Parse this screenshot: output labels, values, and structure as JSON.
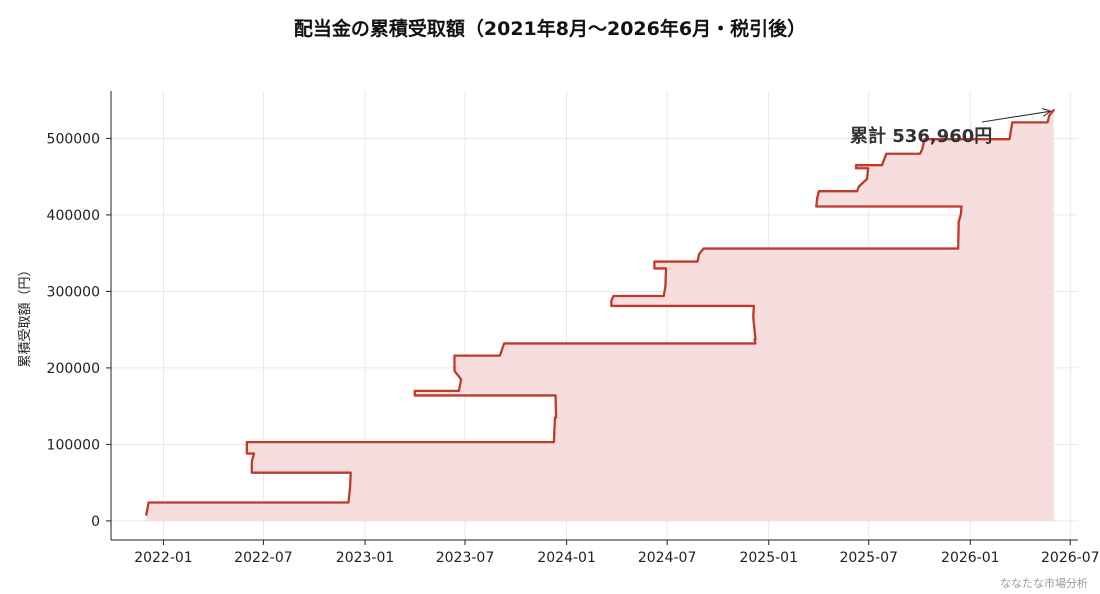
{
  "chart_data": {
    "type": "area",
    "title": "配当金の累積受取額（2021年8月〜2026年6月・税引後）",
    "xlabel": "",
    "ylabel": "累積受取額（円）",
    "ylim": [
      -25000,
      562000
    ],
    "xlim": [
      "2021-09-28",
      "2026-07-15"
    ],
    "yticks": [
      0,
      100000,
      200000,
      300000,
      400000,
      500000
    ],
    "ytick_labels": [
      "0",
      "100000",
      "200000",
      "300000",
      "400000",
      "500000"
    ],
    "xticks": [
      "2022-01-01",
      "2022-07-01",
      "2023-01-01",
      "2023-07-01",
      "2024-01-01",
      "2024-07-01",
      "2025-01-01",
      "2025-07-01",
      "2026-01-01",
      "2026-07-01"
    ],
    "xtick_labels": [
      "2022-01",
      "2022-07",
      "2023-01",
      "2023-07",
      "2024-01",
      "2024-07",
      "2025-01",
      "2025-07",
      "2026-01",
      "2026-07"
    ],
    "grid": true,
    "line_color": "#c0392b",
    "fill_color": "#f5dedd",
    "annotation": {
      "text": "累計 536,960円",
      "x": "2026-06-01",
      "y": 536960
    },
    "series": [
      {
        "values": [
          [
            "2021-12-01",
            8000
          ],
          [
            "2021-12-05",
            24000
          ],
          [
            "2022-12-02",
            24000
          ],
          [
            "2022-12-05",
            45000
          ],
          [
            "2022-12-06",
            63000
          ],
          [
            "2022-06-10",
            63000
          ],
          [
            "2022-06-10",
            78000
          ],
          [
            "2022-06-14",
            88000
          ],
          [
            "2022-06-01",
            88000
          ],
          [
            "2022-06-01",
            103000
          ],
          [
            "2023-12-09",
            103000
          ],
          [
            "2023-12-10",
            120000
          ],
          [
            "2023-12-11",
            135000
          ],
          [
            "2023-12-13",
            135000
          ],
          [
            "2023-12-12",
            164000
          ],
          [
            "2023-04-01",
            164000
          ],
          [
            "2023-04-01",
            170000
          ],
          [
            "2023-06-20",
            170000
          ],
          [
            "2023-06-24",
            185000
          ],
          [
            "2023-06-12",
            196000
          ],
          [
            "2023-06-12",
            216000
          ],
          [
            "2023-09-02",
            216000
          ],
          [
            "2023-09-06",
            224000
          ],
          [
            "2023-09-10",
            232000
          ],
          [
            "2024-12-08",
            232000
          ],
          [
            "2024-12-06",
            237000
          ],
          [
            "2024-12-08",
            237000
          ],
          [
            "2024-12-04",
            266000
          ],
          [
            "2024-12-05",
            281000
          ],
          [
            "2024-03-22",
            281000
          ],
          [
            "2024-03-22",
            288000
          ],
          [
            "2024-03-26",
            294000
          ],
          [
            "2024-06-25",
            294000
          ],
          [
            "2024-06-28",
            307000
          ],
          [
            "2024-06-29",
            330000
          ],
          [
            "2024-06-08",
            330000
          ],
          [
            "2024-06-08",
            339000
          ],
          [
            "2024-08-25",
            339000
          ],
          [
            "2024-08-28",
            349000
          ],
          [
            "2024-09-05",
            356000
          ],
          [
            "2025-12-10",
            356000
          ],
          [
            "2025-12-11",
            391000
          ],
          [
            "2025-12-15",
            401000
          ],
          [
            "2025-12-16",
            411000
          ],
          [
            "2025-03-28",
            411000
          ],
          [
            "2025-03-30",
            423000
          ],
          [
            "2025-04-02",
            431000
          ],
          [
            "2025-06-10",
            431000
          ],
          [
            "2025-06-13",
            437000
          ],
          [
            "2025-06-28",
            447000
          ],
          [
            "2025-06-30",
            461000
          ],
          [
            "2025-06-08",
            461000
          ],
          [
            "2025-06-08",
            465000
          ],
          [
            "2025-07-25",
            465000
          ],
          [
            "2025-08-02",
            480000
          ],
          [
            "2025-10-02",
            480000
          ],
          [
            "2025-10-06",
            486000
          ],
          [
            "2025-10-10",
            499000
          ],
          [
            "2026-03-13",
            499000
          ],
          [
            "2026-03-18",
            521000
          ],
          [
            "2026-05-21",
            521000
          ],
          [
            "2026-05-24",
            530000
          ],
          [
            "2026-06-01",
            536960
          ]
        ]
      }
    ]
  },
  "watermark": "ななたな市場分析"
}
